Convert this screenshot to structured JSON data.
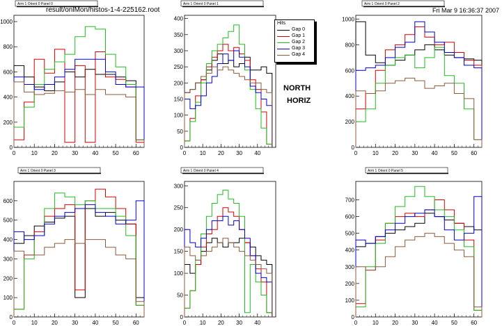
{
  "header": {
    "file": "result/onlMon/histos-1-4-225162.root",
    "date": "Fri Mar  9 16:36:37 2007"
  },
  "annotations": {
    "north": "NORTH",
    "horiz": "HORIZ"
  },
  "legend": {
    "title": "Hits",
    "items": [
      {
        "label": "Gap 0",
        "color": "#000000"
      },
      {
        "label": "Gap 1",
        "color": "#d40000"
      },
      {
        "label": "Gap 2",
        "color": "#22bb22"
      },
      {
        "label": "Gap 3",
        "color": "#0000cc"
      },
      {
        "label": "Gap 4",
        "color": "#8b5a3c"
      }
    ]
  },
  "chart_data": [
    {
      "type": "line",
      "title": "Arm 1 Orient 0 Panel 0",
      "xlim": [
        0,
        64
      ],
      "ylim": [
        0,
        1050
      ],
      "xticks": [
        0,
        10,
        20,
        30,
        40,
        50,
        60
      ],
      "yticks": [
        0,
        200,
        400,
        600,
        800,
        1000
      ],
      "series": [
        {
          "name": "Gap 0",
          "x": [
            0,
            5,
            10,
            15,
            20,
            25,
            30,
            35,
            40,
            45,
            50,
            55,
            60
          ],
          "y": [
            650,
            560,
            480,
            450,
            520,
            600,
            560,
            620,
            580,
            580,
            560,
            530,
            60
          ]
        },
        {
          "name": "Gap 1",
          "x": [
            0,
            5,
            10,
            15,
            20,
            25,
            30,
            35,
            40,
            45,
            50,
            55,
            60
          ],
          "y": [
            60,
            360,
            700,
            590,
            780,
            40,
            650,
            40,
            760,
            560,
            540,
            480,
            40
          ]
        },
        {
          "name": "Gap 2",
          "x": [
            0,
            5,
            10,
            15,
            20,
            25,
            30,
            35,
            40,
            45,
            50,
            55,
            60
          ],
          "y": [
            160,
            320,
            500,
            620,
            680,
            740,
            880,
            960,
            940,
            740,
            640,
            500,
            60
          ]
        },
        {
          "name": "Gap 3",
          "x": [
            0,
            5,
            10,
            15,
            20,
            25,
            30,
            35,
            40,
            45,
            50,
            55,
            60
          ],
          "y": [
            560,
            500,
            460,
            500,
            560,
            620,
            700,
            700,
            700,
            600,
            500,
            480,
            480
          ]
        },
        {
          "name": "Gap 4",
          "x": [
            0,
            5,
            10,
            15,
            20,
            25,
            30,
            35,
            40,
            45,
            50,
            55,
            60
          ],
          "y": [
            520,
            440,
            420,
            430,
            450,
            440,
            460,
            420,
            460,
            420,
            420,
            400,
            60
          ]
        }
      ]
    },
    {
      "type": "line",
      "title": "Arm 1 Orient 0 Panel 1",
      "xlim": [
        0,
        50
      ],
      "ylim": [
        0,
        410
      ],
      "xticks": [
        0,
        10,
        20,
        30,
        40
      ],
      "yticks": [
        0,
        50,
        100,
        150,
        200,
        250,
        300,
        350,
        400
      ],
      "series": [
        {
          "name": "Gap 0",
          "x": [
            0,
            3,
            6,
            9,
            12,
            15,
            18,
            21,
            24,
            27,
            30,
            33,
            36,
            39,
            42,
            45
          ],
          "y": [
            170,
            180,
            200,
            210,
            240,
            270,
            290,
            260,
            270,
            250,
            260,
            280,
            240,
            240,
            250,
            230
          ]
        },
        {
          "name": "Gap 1",
          "x": [
            0,
            3,
            6,
            9,
            12,
            15,
            18,
            21,
            24,
            27,
            30,
            33,
            36,
            39,
            42,
            45
          ],
          "y": [
            20,
            90,
            160,
            210,
            250,
            280,
            300,
            320,
            300,
            310,
            290,
            270,
            210,
            180,
            110,
            10
          ]
        },
        {
          "name": "Gap 2",
          "x": [
            0,
            3,
            6,
            9,
            12,
            15,
            18,
            21,
            24,
            27,
            30,
            33,
            36,
            39,
            42,
            45
          ],
          "y": [
            20,
            80,
            140,
            200,
            260,
            300,
            320,
            340,
            360,
            380,
            320,
            240,
            180,
            120,
            60,
            10
          ]
        },
        {
          "name": "Gap 3",
          "x": [
            0,
            3,
            6,
            9,
            12,
            15,
            18,
            21,
            24,
            27,
            30,
            33,
            36,
            39,
            42,
            45
          ],
          "y": [
            150,
            120,
            130,
            160,
            200,
            220,
            260,
            290,
            270,
            300,
            280,
            250,
            190,
            170,
            150,
            130
          ]
        },
        {
          "name": "Gap 4",
          "x": [
            0,
            3,
            6,
            9,
            12,
            15,
            18,
            21,
            24,
            27,
            30,
            33,
            36,
            39,
            42,
            45
          ],
          "y": [
            170,
            180,
            200,
            220,
            230,
            250,
            240,
            250,
            240,
            230,
            220,
            210,
            200,
            200,
            180,
            170
          ]
        }
      ]
    },
    {
      "type": "line",
      "title": "Arm 1 Orient 0 Panel 2",
      "xlim": [
        0,
        64
      ],
      "ylim": [
        0,
        1030
      ],
      "xticks": [
        0,
        10,
        20,
        30,
        40,
        50,
        60
      ],
      "yticks": [
        0,
        200,
        400,
        600,
        800,
        1000
      ],
      "series": [
        {
          "name": "Gap 0",
          "x": [
            0,
            5,
            10,
            15,
            20,
            25,
            30,
            35,
            40,
            45,
            50,
            55,
            60
          ],
          "y": [
            980,
            720,
            660,
            640,
            680,
            720,
            760,
            800,
            760,
            720,
            700,
            690,
            680
          ]
        },
        {
          "name": "Gap 1",
          "x": [
            0,
            5,
            10,
            15,
            20,
            25,
            30,
            35,
            40,
            45,
            50,
            55,
            60
          ],
          "y": [
            300,
            420,
            600,
            760,
            800,
            880,
            940,
            860,
            800,
            820,
            740,
            680,
            640
          ]
        },
        {
          "name": "Gap 2",
          "x": [
            0,
            5,
            10,
            15,
            20,
            25,
            30,
            35,
            40,
            45,
            50,
            55,
            60
          ],
          "y": [
            200,
            300,
            500,
            640,
            700,
            720,
            620,
            700,
            780,
            560,
            500,
            300,
            60
          ]
        },
        {
          "name": "Gap 3",
          "x": [
            0,
            5,
            10,
            15,
            20,
            25,
            30,
            35,
            40,
            45,
            50,
            55,
            60
          ],
          "y": [
            600,
            620,
            640,
            700,
            780,
            820,
            980,
            900,
            820,
            740,
            700,
            640,
            620
          ]
        },
        {
          "name": "Gap 4",
          "x": [
            0,
            5,
            10,
            15,
            20,
            25,
            30,
            35,
            40,
            45,
            50,
            55,
            60
          ],
          "y": [
            440,
            420,
            440,
            500,
            520,
            540,
            520,
            460,
            480,
            500,
            420,
            380,
            60
          ]
        }
      ]
    },
    {
      "type": "line",
      "title": "Arm 1 Orient 0 Panel 3",
      "xlim": [
        0,
        64
      ],
      "ylim": [
        0,
        700
      ],
      "xticks": [
        0,
        10,
        20,
        30,
        40,
        50,
        60
      ],
      "yticks": [
        0,
        100,
        200,
        300,
        400,
        500,
        600
      ],
      "series": [
        {
          "name": "Gap 0",
          "x": [
            0,
            5,
            10,
            15,
            20,
            25,
            30,
            35,
            40,
            45,
            50,
            55,
            60
          ],
          "y": [
            380,
            420,
            470,
            490,
            510,
            520,
            100,
            560,
            520,
            540,
            500,
            480,
            100
          ]
        },
        {
          "name": "Gap 1",
          "x": [
            0,
            5,
            10,
            15,
            20,
            25,
            30,
            35,
            40,
            45,
            50,
            55,
            60
          ],
          "y": [
            40,
            320,
            440,
            520,
            560,
            580,
            140,
            600,
            660,
            620,
            560,
            480,
            60
          ]
        },
        {
          "name": "Gap 2",
          "x": [
            0,
            5,
            10,
            15,
            20,
            25,
            30,
            35,
            40,
            45,
            50,
            55,
            60
          ],
          "y": [
            40,
            300,
            420,
            560,
            640,
            620,
            580,
            600,
            560,
            560,
            520,
            420,
            60
          ]
        },
        {
          "name": "Gap 3",
          "x": [
            0,
            5,
            10,
            15,
            20,
            25,
            30,
            35,
            40,
            45,
            50,
            55,
            60
          ],
          "y": [
            440,
            400,
            420,
            480,
            520,
            540,
            560,
            580,
            540,
            520,
            480,
            500,
            600
          ]
        },
        {
          "name": "Gap 4",
          "x": [
            0,
            5,
            10,
            15,
            20,
            25,
            30,
            35,
            40,
            45,
            50,
            55,
            60
          ],
          "y": [
            340,
            320,
            320,
            360,
            380,
            400,
            380,
            400,
            400,
            360,
            320,
            300,
            80
          ]
        }
      ]
    },
    {
      "type": "line",
      "title": "Arm 1 Orient 0 Panel 4",
      "xlim": [
        0,
        50
      ],
      "ylim": [
        0,
        310
      ],
      "xticks": [
        0,
        10,
        20,
        30,
        40
      ],
      "yticks": [
        0,
        50,
        100,
        150,
        200,
        250,
        300
      ],
      "series": [
        {
          "name": "Gap 0",
          "x": [
            0,
            3,
            6,
            9,
            12,
            15,
            18,
            21,
            24,
            27,
            30,
            33,
            36,
            39,
            42,
            45
          ],
          "y": [
            120,
            100,
            120,
            150,
            170,
            180,
            170,
            160,
            170,
            170,
            180,
            170,
            160,
            140,
            130,
            120
          ]
        },
        {
          "name": "Gap 1",
          "x": [
            0,
            3,
            6,
            9,
            12,
            15,
            18,
            21,
            24,
            27,
            30,
            33,
            36,
            39,
            42,
            45
          ],
          "y": [
            20,
            60,
            120,
            160,
            190,
            200,
            230,
            250,
            240,
            230,
            200,
            170,
            140,
            110,
            80,
            10
          ]
        },
        {
          "name": "Gap 2",
          "x": [
            0,
            3,
            6,
            9,
            12,
            15,
            18,
            21,
            24,
            27,
            30,
            33,
            36,
            39,
            42,
            45
          ],
          "y": [
            20,
            60,
            130,
            190,
            230,
            260,
            280,
            290,
            270,
            260,
            230,
            10,
            120,
            80,
            50,
            10
          ]
        },
        {
          "name": "Gap 3",
          "x": [
            0,
            3,
            6,
            9,
            12,
            15,
            18,
            21,
            24,
            27,
            30,
            33,
            36,
            39,
            42,
            45
          ],
          "y": [
            200,
            170,
            160,
            180,
            200,
            220,
            220,
            230,
            210,
            220,
            200,
            180,
            140,
            100,
            90,
            80
          ]
        },
        {
          "name": "Gap 4",
          "x": [
            0,
            3,
            6,
            9,
            12,
            15,
            18,
            21,
            24,
            27,
            30,
            33,
            36,
            39,
            42,
            45
          ],
          "y": [
            160,
            140,
            130,
            140,
            150,
            160,
            170,
            180,
            170,
            160,
            150,
            140,
            130,
            120,
            110,
            100
          ]
        }
      ]
    },
    {
      "type": "line",
      "title": "Arm 1 Orient 0 Panel 5",
      "xlim": [
        0,
        64
      ],
      "ylim": [
        0,
        810
      ],
      "xticks": [
        0,
        10,
        20,
        30,
        40,
        50,
        60
      ],
      "yticks": [
        0,
        100,
        200,
        300,
        400,
        500,
        600,
        700
      ],
      "series": [
        {
          "name": "Gap 0",
          "x": [
            0,
            5,
            10,
            15,
            20,
            25,
            30,
            35,
            40,
            45,
            50,
            55,
            60
          ],
          "y": [
            420,
            440,
            480,
            500,
            520,
            540,
            560,
            620,
            600,
            580,
            560,
            540,
            520
          ]
        },
        {
          "name": "Gap 1",
          "x": [
            0,
            5,
            10,
            15,
            20,
            25,
            30,
            35,
            40,
            45,
            50,
            55,
            60
          ],
          "y": [
            80,
            280,
            460,
            560,
            600,
            620,
            600,
            640,
            700,
            640,
            560,
            460,
            40
          ]
        },
        {
          "name": "Gap 2",
          "x": [
            0,
            5,
            10,
            15,
            20,
            25,
            30,
            35,
            40,
            45,
            50,
            55,
            60
          ],
          "y": [
            60,
            300,
            440,
            560,
            660,
            720,
            780,
            720,
            640,
            600,
            520,
            420,
            40
          ]
        },
        {
          "name": "Gap 3",
          "x": [
            0,
            5,
            10,
            15,
            20,
            25,
            30,
            35,
            40,
            45,
            50,
            55,
            60
          ],
          "y": [
            460,
            440,
            480,
            520,
            560,
            600,
            620,
            640,
            600,
            520,
            460,
            500,
            720
          ]
        },
        {
          "name": "Gap 4",
          "x": [
            0,
            5,
            10,
            15,
            20,
            25,
            30,
            35,
            40,
            45,
            50,
            55,
            60
          ],
          "y": [
            300,
            280,
            300,
            360,
            420,
            460,
            480,
            500,
            480,
            440,
            400,
            360,
            60
          ]
        }
      ]
    }
  ]
}
